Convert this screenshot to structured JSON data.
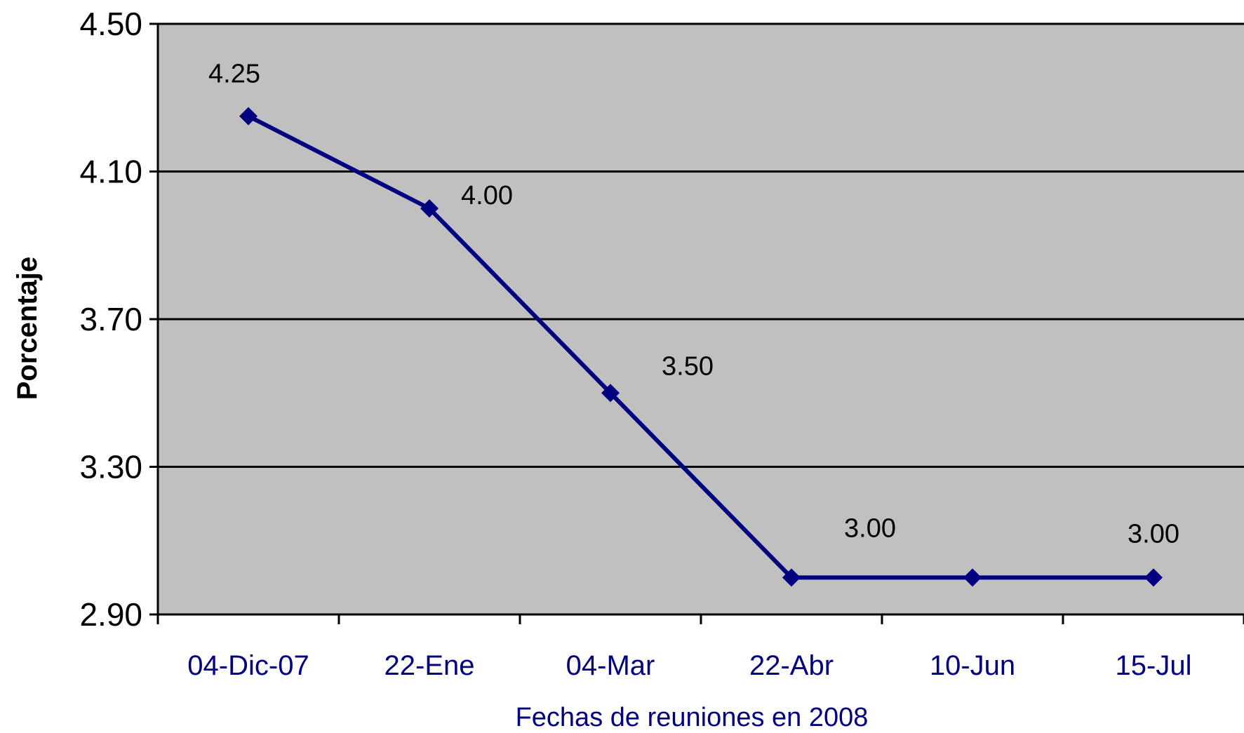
{
  "chart_data": {
    "type": "line",
    "title": "",
    "xlabel": "Fechas de reuniones en 2008",
    "ylabel": "Porcentaje",
    "categories": [
      "04-Dic-07",
      "22-Ene",
      "04-Mar",
      "22-Abr",
      "10-Jun",
      "15-Jul"
    ],
    "series": [
      {
        "values": [
          4.25,
          4.0,
          3.5,
          3.0,
          3.0,
          3.0
        ]
      }
    ],
    "data_labels": [
      "4.25",
      "4.00",
      "3.50",
      "3.00",
      "",
      "3.00"
    ],
    "ylim": [
      2.9,
      4.5
    ],
    "yticks": [
      "2.90",
      "3.30",
      "3.70",
      "4.10",
      "4.50"
    ],
    "grid": true,
    "legend": "none",
    "colors": {
      "plot_background": "#c0c0c0",
      "series_line": "#000080",
      "gridlines": "#000000",
      "x_tick_labels": "#000080",
      "x_axis_title": "#000080"
    },
    "marker": "diamond-icon"
  }
}
